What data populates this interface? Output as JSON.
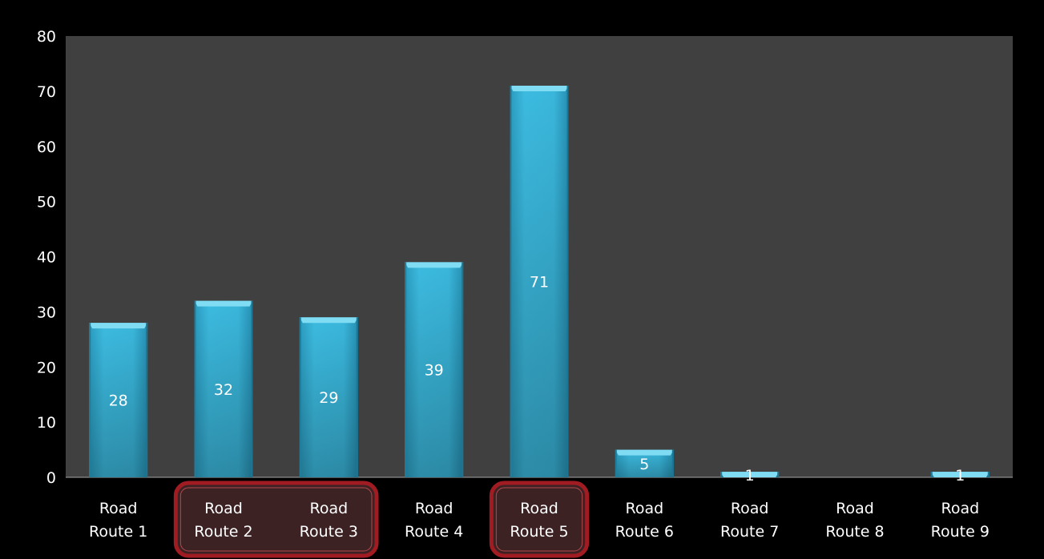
{
  "chart_data": {
    "type": "bar",
    "categories": [
      [
        "Road",
        "Route 1"
      ],
      [
        "Road",
        "Route 2"
      ],
      [
        "Road",
        "Route 3"
      ],
      [
        "Road",
        "Route 4"
      ],
      [
        "Road",
        "Route 5"
      ],
      [
        "Road",
        "Route 6"
      ],
      [
        "Road",
        "Route 7"
      ],
      [
        "Road",
        "Route 8"
      ],
      [
        "Road",
        "Route 9"
      ]
    ],
    "values": [
      28,
      32,
      29,
      39,
      71,
      5,
      1,
      null,
      1
    ],
    "data_labels": [
      "28",
      "32",
      "29",
      "39",
      "71",
      "5",
      "1",
      "",
      "1"
    ],
    "ylim": [
      0,
      80
    ],
    "yticks": [
      0,
      10,
      20,
      30,
      40,
      50,
      60,
      70,
      80
    ],
    "grid": false,
    "highlighted_groups": [
      [
        1,
        2
      ],
      [
        4
      ]
    ],
    "colors": {
      "background": "#000000",
      "plot_area": "#404040",
      "bar": "#39b6db",
      "bar_top": "#7fdcf3",
      "highlight_stroke": "#a01c22",
      "highlight_fill": "#3d2224"
    }
  }
}
